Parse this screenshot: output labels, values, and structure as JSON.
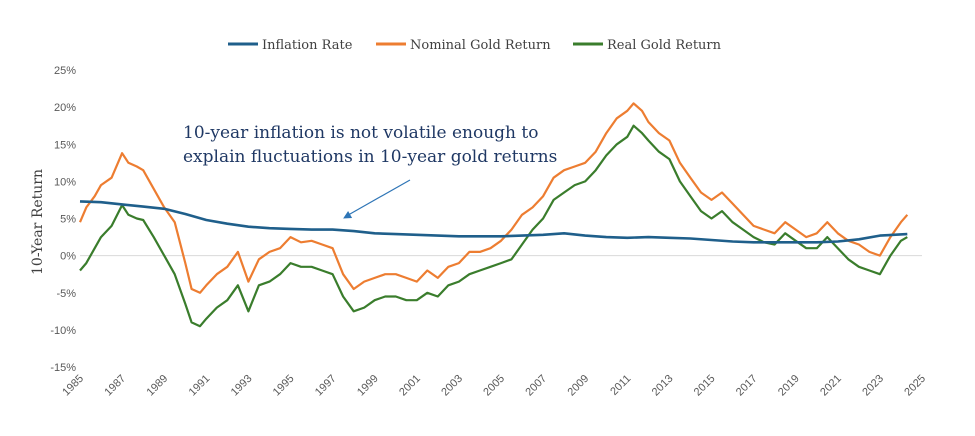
{
  "chart_data": {
    "type": "line",
    "title": "",
    "xlabel": "",
    "ylabel": "10-Year Return",
    "xlim": [
      1985,
      2025
    ],
    "ylim": [
      -15,
      25
    ],
    "x_ticks": [
      "1985",
      "1987",
      "1989",
      "1991",
      "1993",
      "1995",
      "1997",
      "1999",
      "2001",
      "2003",
      "2005",
      "2007",
      "2009",
      "2011",
      "2013",
      "2015",
      "2017",
      "2019",
      "2021",
      "2023",
      "2025"
    ],
    "y_ticks": [
      {
        "value": 25,
        "label": "25%"
      },
      {
        "value": 20,
        "label": "20%"
      },
      {
        "value": 15,
        "label": "15%"
      },
      {
        "value": 10,
        "label": "10%"
      },
      {
        "value": 5,
        "label": "5%"
      },
      {
        "value": 0,
        "label": "0%"
      },
      {
        "value": -5,
        "label": "-5%"
      },
      {
        "value": -10,
        "label": "-10%"
      },
      {
        "value": -15,
        "label": "-15%"
      }
    ],
    "legend_position": "top-center",
    "grid": false,
    "series": [
      {
        "name": "Inflation Rate",
        "color": "#1f5f8b",
        "x": [
          1985,
          1986,
          1987,
          1988,
          1989,
          1990,
          1991,
          1992,
          1993,
          1994,
          1995,
          1996,
          1997,
          1998,
          1999,
          2000,
          2001,
          2002,
          2003,
          2004,
          2005,
          2006,
          2007,
          2008,
          2009,
          2010,
          2011,
          2012,
          2013,
          2014,
          2015,
          2016,
          2017,
          2018,
          2019,
          2020,
          2021,
          2022,
          2023,
          2024.3
        ],
        "y": [
          7.3,
          7.2,
          6.9,
          6.6,
          6.3,
          5.6,
          4.8,
          4.3,
          3.9,
          3.7,
          3.6,
          3.5,
          3.5,
          3.3,
          3.0,
          2.9,
          2.8,
          2.7,
          2.6,
          2.6,
          2.6,
          2.7,
          2.8,
          3.0,
          2.7,
          2.5,
          2.4,
          2.5,
          2.4,
          2.3,
          2.1,
          1.9,
          1.8,
          1.8,
          1.8,
          1.8,
          1.9,
          2.2,
          2.7,
          2.9
        ]
      },
      {
        "name": "Nominal Gold Return",
        "color": "#ed7d31",
        "x": [
          1985,
          1985.3,
          1985.7,
          1986,
          1986.5,
          1987,
          1987.3,
          1987.7,
          1988,
          1988.5,
          1989,
          1989.5,
          1990,
          1990.3,
          1990.7,
          1991,
          1991.5,
          1992,
          1992.5,
          1993,
          1993.5,
          1994,
          1994.5,
          1995,
          1995.5,
          1996,
          1996.5,
          1997,
          1997.5,
          1998,
          1998.5,
          1999,
          1999.5,
          2000,
          2000.5,
          2001,
          2001.5,
          2002,
          2002.5,
          2003,
          2003.5,
          2004,
          2004.5,
          2005,
          2005.5,
          2006,
          2006.5,
          2007,
          2007.5,
          2008,
          2008.5,
          2009,
          2009.5,
          2010,
          2010.5,
          2011,
          2011.3,
          2011.7,
          2012,
          2012.5,
          2013,
          2013.5,
          2014,
          2014.5,
          2015,
          2015.5,
          2016,
          2016.5,
          2017,
          2017.5,
          2018,
          2018.5,
          2019,
          2019.5,
          2020,
          2020.5,
          2021,
          2021.5,
          2022,
          2022.5,
          2023,
          2023.5,
          2024,
          2024.3
        ],
        "y": [
          4.5,
          6.5,
          8.0,
          9.5,
          10.5,
          13.8,
          12.5,
          12.0,
          11.5,
          9.0,
          6.5,
          4.5,
          -1.0,
          -4.5,
          -5.0,
          -4.0,
          -2.5,
          -1.5,
          0.5,
          -3.5,
          -0.5,
          0.5,
          1.0,
          2.5,
          1.8,
          2.0,
          1.5,
          1.0,
          -2.5,
          -4.5,
          -3.5,
          -3.0,
          -2.5,
          -2.5,
          -3.0,
          -3.5,
          -2.0,
          -3.0,
          -1.5,
          -1.0,
          0.5,
          0.5,
          1.0,
          2.0,
          3.5,
          5.5,
          6.5,
          8.0,
          10.5,
          11.5,
          12.0,
          12.5,
          14.0,
          16.5,
          18.5,
          19.5,
          20.5,
          19.5,
          18.0,
          16.5,
          15.5,
          12.5,
          10.5,
          8.5,
          7.5,
          8.5,
          7.0,
          5.5,
          4.0,
          3.5,
          3.0,
          4.5,
          3.5,
          2.5,
          3.0,
          4.5,
          3.0,
          2.0,
          1.5,
          0.5,
          0.0,
          2.5,
          4.5,
          5.5
        ]
      },
      {
        "name": "Real Gold Return",
        "color": "#3a7d2c",
        "x": [
          1985,
          1985.3,
          1985.7,
          1986,
          1986.5,
          1987,
          1987.3,
          1987.7,
          1988,
          1988.5,
          1989,
          1989.5,
          1990,
          1990.3,
          1990.7,
          1991,
          1991.5,
          1992,
          1992.5,
          1993,
          1993.5,
          1994,
          1994.5,
          1995,
          1995.5,
          1996,
          1996.5,
          1997,
          1997.5,
          1998,
          1998.5,
          1999,
          1999.5,
          2000,
          2000.5,
          2001,
          2001.5,
          2002,
          2002.5,
          2003,
          2003.5,
          2004,
          2004.5,
          2005,
          2005.5,
          2006,
          2006.5,
          2007,
          2007.5,
          2008,
          2008.5,
          2009,
          2009.5,
          2010,
          2010.5,
          2011,
          2011.3,
          2011.7,
          2012,
          2012.5,
          2013,
          2013.5,
          2014,
          2014.5,
          2015,
          2015.5,
          2016,
          2016.5,
          2017,
          2017.5,
          2018,
          2018.5,
          2019,
          2019.5,
          2020,
          2020.5,
          2021,
          2021.5,
          2022,
          2022.5,
          2023,
          2023.5,
          2024,
          2024.3
        ],
        "y": [
          -2.0,
          -1.0,
          1.0,
          2.5,
          4.0,
          6.8,
          5.5,
          5.0,
          4.8,
          2.5,
          0.0,
          -2.5,
          -6.5,
          -9.0,
          -9.5,
          -8.5,
          -7.0,
          -6.0,
          -4.0,
          -7.5,
          -4.0,
          -3.5,
          -2.5,
          -1.0,
          -1.5,
          -1.5,
          -2.0,
          -2.5,
          -5.5,
          -7.5,
          -7.0,
          -6.0,
          -5.5,
          -5.5,
          -6.0,
          -6.0,
          -5.0,
          -5.5,
          -4.0,
          -3.5,
          -2.5,
          -2.0,
          -1.5,
          -1.0,
          -0.5,
          1.5,
          3.5,
          5.0,
          7.5,
          8.5,
          9.5,
          10.0,
          11.5,
          13.5,
          15.0,
          16.0,
          17.5,
          16.5,
          15.5,
          14.0,
          13.0,
          10.0,
          8.0,
          6.0,
          5.0,
          6.0,
          4.5,
          3.5,
          2.5,
          1.8,
          1.5,
          3.0,
          2.0,
          1.0,
          1.0,
          2.5,
          1.0,
          -0.5,
          -1.5,
          -2.0,
          -2.5,
          0.0,
          2.0,
          2.5
        ]
      }
    ],
    "annotations": [
      {
        "lines": [
          "10-year inflation is not volatile enough to",
          "explain fluctuations in 10-year gold returns"
        ],
        "arrow_to": {
          "x": 1997.5,
          "y": 5.0
        },
        "color": "#1f3864"
      }
    ]
  }
}
